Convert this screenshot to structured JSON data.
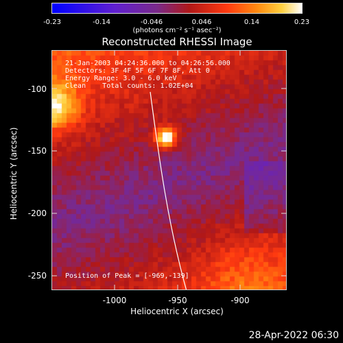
{
  "colorbar": {
    "ticks": [
      "-0.23",
      "-0.14",
      "-0.046",
      "0.046",
      "0.14",
      "0.23"
    ],
    "unit_label": "(photons cm⁻² s⁻¹ asec⁻²)",
    "range": [
      -0.23,
      0.23
    ]
  },
  "title": "Reconstructed RHESSI Image",
  "info": {
    "line1": "21-Jan-2003 04:24:36.000 to 04:26:56.000",
    "line2": "Detectors: 3F 4F 5F 6F 7F 8F, Att 0",
    "line3": "Energy Range: 3.0 - 6.0 keV",
    "line4": "Clean    Total counts: 1.02E+04",
    "peak": "Position of Peak = [-969,-139]"
  },
  "axes": {
    "xlabel": "Heliocentric X (arcsec)",
    "ylabel": "Heliocentric Y (arcsec)",
    "xticks": [
      "-1000",
      "-950",
      "-900"
    ],
    "yticks": [
      "-100",
      "-150",
      "-200",
      "-250"
    ]
  },
  "timestamp": "28-Apr-2022 06:30",
  "chart_data": {
    "type": "heatmap",
    "title": "Reconstructed RHESSI Image",
    "xlabel": "Heliocentric X (arcsec)",
    "ylabel": "Heliocentric Y (arcsec)",
    "xlim": [
      -1049,
      -880
    ],
    "ylim": [
      -261,
      -73
    ],
    "xticks": [
      -1000,
      -950,
      -900
    ],
    "yticks": [
      -100,
      -150,
      -200,
      -250
    ],
    "colorbar_range": [
      -0.23,
      0.23
    ],
    "colorbar_ticks": [
      -0.23,
      -0.14,
      -0.046,
      0.046,
      0.14,
      0.23
    ],
    "colorbar_label": "(photons cm⁻² s⁻¹ asec⁻²)",
    "peak_position": [
      -969,
      -139
    ],
    "limb_contour": true,
    "colors": {
      "colormap": [
        "#0000ff",
        "#5a1fbf",
        "#7a2a8a",
        "#c02020",
        "#ff4010",
        "#ff9a10",
        "#ffd040",
        "#ffffff"
      ],
      "limb": "#ffffff"
    }
  }
}
